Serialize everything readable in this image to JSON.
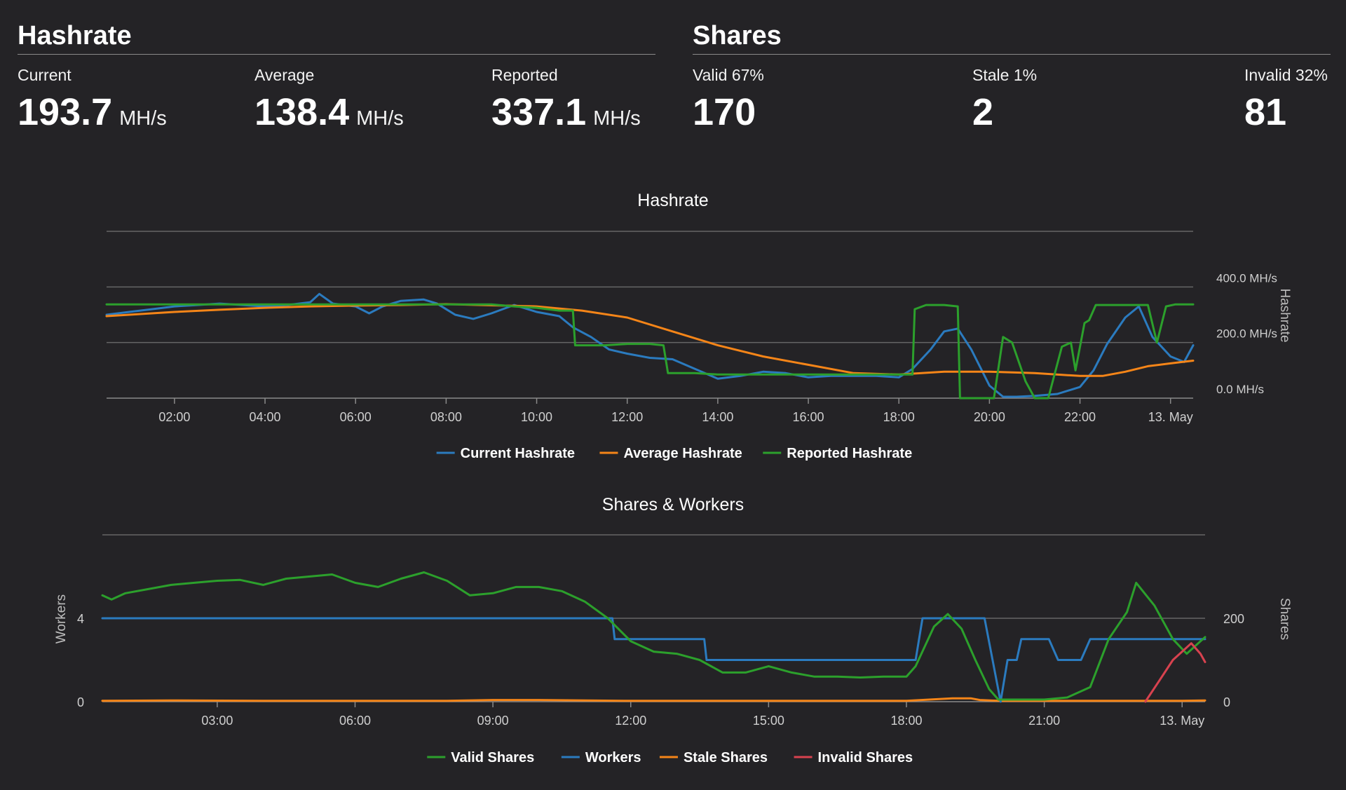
{
  "hashrate_header": {
    "title": "Hashrate",
    "stats": [
      {
        "label": "Current",
        "value": "193.7",
        "unit": "MH/s"
      },
      {
        "label": "Average",
        "value": "138.4",
        "unit": "MH/s"
      },
      {
        "label": "Reported",
        "value": "337.1",
        "unit": "MH/s"
      }
    ]
  },
  "shares_header": {
    "title": "Shares",
    "stats": [
      {
        "label": "Valid 67%",
        "value": "170"
      },
      {
        "label": "Stale 1%",
        "value": "2"
      },
      {
        "label": "Invalid 32%",
        "value": "81"
      }
    ]
  },
  "chart_data": [
    {
      "type": "line",
      "title": "Hashrate",
      "ylabel": "Hashrate",
      "xlim": [
        0.5,
        24.5
      ],
      "ylim": [
        0,
        600
      ],
      "x_ticks": [
        2,
        4,
        6,
        8,
        10,
        12,
        14,
        16,
        18,
        20,
        22,
        24
      ],
      "x_tick_labels": [
        "02:00",
        "04:00",
        "06:00",
        "08:00",
        "10:00",
        "12:00",
        "14:00",
        "16:00",
        "18:00",
        "20:00",
        "22:00",
        "13. May"
      ],
      "y_ticks": [
        0,
        200,
        400
      ],
      "y_tick_labels": [
        "0.0 MH/s",
        "200.0 MH/s",
        "400.0 MH/s"
      ],
      "legend_position": "bottom",
      "colors": {
        "Current Hashrate": "#2b7bbf",
        "Average Hashrate": "#f58518",
        "Reported Hashrate": "#2ca02c"
      },
      "series": [
        {
          "name": "Current Hashrate",
          "points": [
            [
              0.5,
              300
            ],
            [
              1,
              310
            ],
            [
              1.5,
              320
            ],
            [
              2,
              330
            ],
            [
              2.5,
              335
            ],
            [
              3,
              340
            ],
            [
              3.5,
              335
            ],
            [
              4,
              330
            ],
            [
              4.5,
              335
            ],
            [
              5,
              345
            ],
            [
              5.2,
              375
            ],
            [
              5.5,
              340
            ],
            [
              6,
              330
            ],
            [
              6.3,
              305
            ],
            [
              6.6,
              330
            ],
            [
              7,
              350
            ],
            [
              7.5,
              355
            ],
            [
              7.8,
              340
            ],
            [
              8.2,
              300
            ],
            [
              8.6,
              285
            ],
            [
              9,
              305
            ],
            [
              9.5,
              335
            ],
            [
              10,
              310
            ],
            [
              10.5,
              295
            ],
            [
              10.8,
              255
            ],
            [
              11.2,
              220
            ],
            [
              11.6,
              175
            ],
            [
              12,
              160
            ],
            [
              12.5,
              145
            ],
            [
              13,
              140
            ],
            [
              13.5,
              105
            ],
            [
              14,
              70
            ],
            [
              14.5,
              80
            ],
            [
              15,
              95
            ],
            [
              15.5,
              90
            ],
            [
              16,
              75
            ],
            [
              16.5,
              80
            ],
            [
              17,
              80
            ],
            [
              17.5,
              80
            ],
            [
              18,
              75
            ],
            [
              18.3,
              105
            ],
            [
              18.7,
              175
            ],
            [
              19,
              240
            ],
            [
              19.3,
              250
            ],
            [
              19.6,
              175
            ],
            [
              20,
              45
            ],
            [
              20.3,
              5
            ],
            [
              20.6,
              5
            ],
            [
              21,
              8
            ],
            [
              21.5,
              15
            ],
            [
              22,
              40
            ],
            [
              22.3,
              100
            ],
            [
              22.6,
              195
            ],
            [
              23,
              290
            ],
            [
              23.3,
              330
            ],
            [
              23.6,
              220
            ],
            [
              24,
              150
            ],
            [
              24.3,
              130
            ],
            [
              24.5,
              190
            ]
          ]
        },
        {
          "name": "Average Hashrate",
          "points": [
            [
              0.5,
              295
            ],
            [
              1,
              300
            ],
            [
              2,
              310
            ],
            [
              3,
              318
            ],
            [
              4,
              325
            ],
            [
              5,
              330
            ],
            [
              6,
              333
            ],
            [
              7,
              335
            ],
            [
              8,
              338
            ],
            [
              9,
              334
            ],
            [
              10,
              330
            ],
            [
              11,
              315
            ],
            [
              12,
              290
            ],
            [
              13,
              240
            ],
            [
              14,
              190
            ],
            [
              15,
              150
            ],
            [
              16,
              120
            ],
            [
              17,
              90
            ],
            [
              18,
              85
            ],
            [
              19,
              95
            ],
            [
              20,
              95
            ],
            [
              21,
              90
            ],
            [
              22,
              80
            ],
            [
              22.5,
              80
            ],
            [
              23,
              95
            ],
            [
              23.5,
              115
            ],
            [
              24,
              125
            ],
            [
              24.5,
              135
            ]
          ]
        },
        {
          "name": "Reported Hashrate",
          "points": [
            [
              0.5,
              337
            ],
            [
              9,
              337
            ],
            [
              9.5,
              330
            ],
            [
              10,
              325
            ],
            [
              10.5,
              315
            ],
            [
              10.8,
              315
            ],
            [
              10.85,
              190
            ],
            [
              11.5,
              190
            ],
            [
              12,
              195
            ],
            [
              12.5,
              195
            ],
            [
              12.8,
              190
            ],
            [
              12.9,
              90
            ],
            [
              13.5,
              90
            ],
            [
              14,
              85
            ],
            [
              18,
              85
            ],
            [
              18.3,
              85
            ],
            [
              18.35,
              320
            ],
            [
              18.6,
              335
            ],
            [
              19,
              335
            ],
            [
              19.3,
              330
            ],
            [
              19.35,
              0
            ],
            [
              20.1,
              0
            ],
            [
              20.3,
              220
            ],
            [
              20.5,
              200
            ],
            [
              20.8,
              60
            ],
            [
              21,
              0
            ],
            [
              21.3,
              0
            ],
            [
              21.6,
              185
            ],
            [
              21.8,
              200
            ],
            [
              21.9,
              100
            ],
            [
              22.1,
              270
            ],
            [
              22.2,
              280
            ],
            [
              22.35,
              335
            ],
            [
              23.5,
              335
            ],
            [
              23.7,
              200
            ],
            [
              23.9,
              330
            ],
            [
              24.1,
              337
            ],
            [
              24.5,
              337
            ]
          ]
        }
      ]
    },
    {
      "type": "line",
      "title": "Shares & Workers",
      "ylabel_left": "Workers",
      "ylabel_right": "Shares",
      "xlim": [
        0.5,
        24.5
      ],
      "ylim_left": [
        0,
        8
      ],
      "ylim_right": [
        0,
        400
      ],
      "x_ticks": [
        3,
        6,
        9,
        12,
        15,
        18,
        21,
        24
      ],
      "x_tick_labels": [
        "03:00",
        "06:00",
        "09:00",
        "12:00",
        "15:00",
        "18:00",
        "21:00",
        "13. May"
      ],
      "y_ticks_left": [
        0,
        4
      ],
      "y_tick_labels_left": [
        "0",
        "4"
      ],
      "y_ticks_right": [
        0,
        200
      ],
      "y_tick_labels_right": [
        "0",
        "200"
      ],
      "legend_position": "bottom",
      "colors": {
        "Valid Shares": "#2ca02c",
        "Workers": "#2b7bbf",
        "Stale Shares": "#f58518",
        "Invalid Shares": "#d8424f"
      },
      "series": [
        {
          "name": "Valid Shares",
          "axis": "right",
          "points": [
            [
              0.5,
              255
            ],
            [
              0.7,
              245
            ],
            [
              1,
              260
            ],
            [
              1.5,
              270
            ],
            [
              2,
              280
            ],
            [
              2.5,
              285
            ],
            [
              3,
              290
            ],
            [
              3.5,
              292
            ],
            [
              4,
              280
            ],
            [
              4.5,
              295
            ],
            [
              5,
              300
            ],
            [
              5.5,
              305
            ],
            [
              6,
              285
            ],
            [
              6.5,
              275
            ],
            [
              7,
              295
            ],
            [
              7.5,
              310
            ],
            [
              8,
              290
            ],
            [
              8.5,
              255
            ],
            [
              9,
              260
            ],
            [
              9.5,
              275
            ],
            [
              10,
              275
            ],
            [
              10.5,
              265
            ],
            [
              11,
              240
            ],
            [
              11.5,
              200
            ],
            [
              12,
              145
            ],
            [
              12.5,
              120
            ],
            [
              13,
              115
            ],
            [
              13.5,
              100
            ],
            [
              14,
              70
            ],
            [
              14.5,
              70
            ],
            [
              15,
              85
            ],
            [
              15.5,
              70
            ],
            [
              16,
              60
            ],
            [
              16.5,
              60
            ],
            [
              17,
              58
            ],
            [
              17.5,
              60
            ],
            [
              18,
              60
            ],
            [
              18.2,
              85
            ],
            [
              18.6,
              180
            ],
            [
              18.9,
              210
            ],
            [
              19.2,
              175
            ],
            [
              19.5,
              100
            ],
            [
              19.8,
              30
            ],
            [
              20,
              5
            ],
            [
              20.5,
              5
            ],
            [
              21,
              5
            ],
            [
              21.5,
              10
            ],
            [
              22,
              35
            ],
            [
              22.4,
              150
            ],
            [
              22.8,
              215
            ],
            [
              23,
              285
            ],
            [
              23.4,
              230
            ],
            [
              23.8,
              150
            ],
            [
              24.1,
              115
            ],
            [
              24.5,
              155
            ]
          ]
        },
        {
          "name": "Workers",
          "axis": "left",
          "points": [
            [
              0.5,
              4
            ],
            [
              11.6,
              4
            ],
            [
              11.65,
              3
            ],
            [
              13.6,
              3
            ],
            [
              13.65,
              2
            ],
            [
              18.2,
              2
            ],
            [
              18.35,
              4
            ],
            [
              19.6,
              4
            ],
            [
              19.7,
              4
            ],
            [
              20.05,
              0
            ],
            [
              20.2,
              2
            ],
            [
              20.4,
              2
            ],
            [
              20.5,
              3
            ],
            [
              21.1,
              3
            ],
            [
              21.3,
              2
            ],
            [
              21.8,
              2
            ],
            [
              22,
              3
            ],
            [
              24.5,
              3
            ]
          ]
        },
        {
          "name": "Stale Shares",
          "axis": "right",
          "points": [
            [
              0.5,
              2
            ],
            [
              2,
              3
            ],
            [
              4,
              2
            ],
            [
              6,
              2
            ],
            [
              8,
              2
            ],
            [
              9,
              4
            ],
            [
              10,
              4
            ],
            [
              11,
              3
            ],
            [
              12,
              2
            ],
            [
              14,
              2
            ],
            [
              16,
              2
            ],
            [
              18,
              2
            ],
            [
              18.5,
              5
            ],
            [
              19,
              8
            ],
            [
              19.4,
              8
            ],
            [
              19.6,
              4
            ],
            [
              20,
              2
            ],
            [
              22,
              2
            ],
            [
              24,
              2
            ],
            [
              24.5,
              3
            ]
          ]
        },
        {
          "name": "Invalid Shares",
          "axis": "right",
          "points": [
            [
              23.2,
              0
            ],
            [
              23.5,
              50
            ],
            [
              23.8,
              100
            ],
            [
              24,
              120
            ],
            [
              24.2,
              140
            ],
            [
              24.4,
              115
            ],
            [
              24.5,
              95
            ]
          ]
        }
      ]
    }
  ]
}
